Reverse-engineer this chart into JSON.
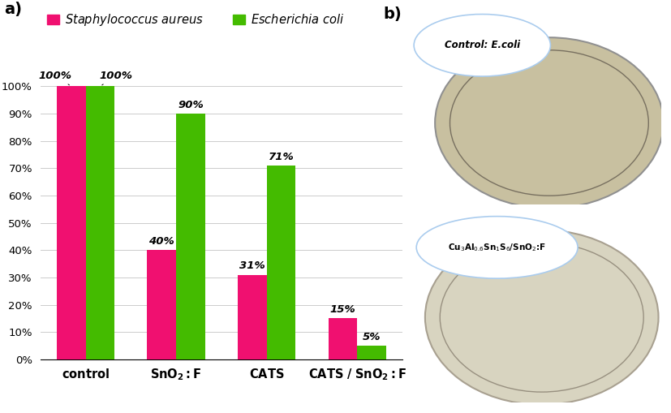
{
  "categories": [
    "control",
    "SnO₂:F",
    "CATS",
    "CATS / SnO₂:F"
  ],
  "staph_values": [
    100,
    40,
    31,
    15
  ],
  "ecoli_values": [
    100,
    90,
    71,
    5
  ],
  "staph_color": "#F01070",
  "ecoli_color": "#44BB00",
  "bar_width": 0.32,
  "ylim": [
    0,
    115
  ],
  "yticks": [
    0,
    10,
    20,
    30,
    40,
    50,
    60,
    70,
    80,
    90,
    100
  ],
  "ytick_labels": [
    "0%",
    "10%",
    "20%",
    "30%",
    "40%",
    "50%",
    "60%",
    "70%",
    "80%",
    "90%",
    "100%"
  ],
  "legend_staph": "Staphylococcus aureus",
  "legend_ecoli": "Escherichia coli",
  "panel_label_a": "a)",
  "panel_label_b": "b)",
  "annotation_fontsize": 9.5,
  "category_fontsize": 10.5,
  "tick_fontsize": 9.5,
  "legend_fontsize": 10.5,
  "background_color": "#FFFFFF",
  "grid_color": "#CCCCCC",
  "photo_bg_top": "#C8C8D0",
  "photo_bg_bottom": "#C4C4CC",
  "dish_top_fill": "#C8C0A0",
  "dish_bottom_fill": "#D8D4C0",
  "dish_ring_color": "#B0A888",
  "label_ellipse_color": "#E8F0FF",
  "label_ellipse_edge": "#AACCEE"
}
